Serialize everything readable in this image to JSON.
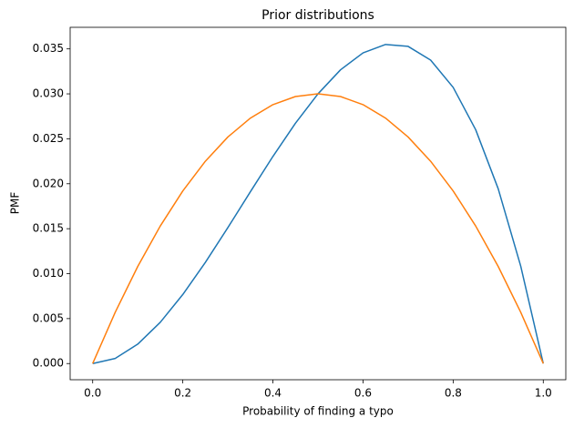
{
  "chart_data": {
    "type": "line",
    "title": "Prior distributions",
    "x_label": "Probability of finding a typo",
    "y_label": "PMF",
    "x": [
      0,
      0.05,
      0.1,
      0.15,
      0.2,
      0.25,
      0.3,
      0.35,
      0.4,
      0.45,
      0.5,
      0.55,
      0.6,
      0.65,
      0.7,
      0.75,
      0.8,
      0.85,
      0.9,
      0.95,
      1
    ],
    "series": [
      {
        "color": "#1f77b4",
        "values": [
          0,
          0.00057,
          0.00216,
          0.00459,
          0.00768,
          0.01125,
          0.01512,
          0.01911,
          0.02304,
          0.02673,
          0.03,
          0.03267,
          0.03456,
          0.03549,
          0.03528,
          0.03375,
          0.03072,
          0.02601,
          0.01944,
          0.01083,
          0
        ]
      },
      {
        "color": "#ff7f0e",
        "values": [
          0,
          0.0057,
          0.0108,
          0.0153,
          0.0192,
          0.0225,
          0.0252,
          0.0273,
          0.0288,
          0.0297,
          0.03,
          0.0297,
          0.0288,
          0.0273,
          0.0252,
          0.0225,
          0.0192,
          0.0153,
          0.0108,
          0.0057,
          0
        ]
      }
    ],
    "xlim": [
      -0.05,
      1.05
    ],
    "ylim": [
      -0.0018,
      0.0374
    ],
    "xticks": [
      {
        "value": 0,
        "label": "0.0"
      },
      0.2,
      0.4,
      0.6,
      0.8,
      {
        "value": 1,
        "label": "1.0"
      }
    ],
    "yticks": [
      {
        "value": 0,
        "label": "0.000"
      },
      {
        "value": 0.005,
        "label": "0.005"
      },
      {
        "value": 0.01,
        "label": "0.010"
      },
      {
        "value": 0.015,
        "label": "0.015"
      },
      {
        "value": 0.02,
        "label": "0.020"
      },
      {
        "value": 0.025,
        "label": "0.025"
      },
      {
        "value": 0.03,
        "label": "0.030"
      },
      {
        "value": 0.035,
        "label": "0.035"
      }
    ],
    "grid": false
  }
}
